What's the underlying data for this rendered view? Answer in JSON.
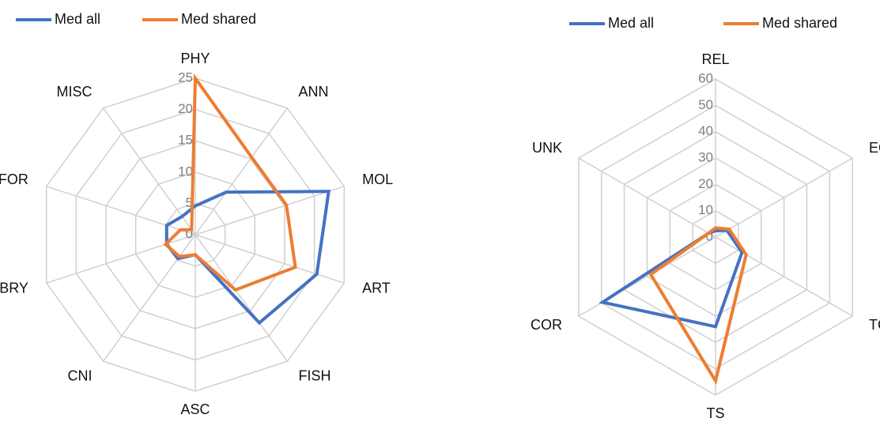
{
  "chart_data": [
    {
      "type": "radar",
      "categories": [
        "PHY",
        "ANN",
        "MOL",
        "ART",
        "FISH",
        "ASC",
        "CNI",
        "BRY",
        "FOR",
        "MISC"
      ],
      "series": [
        {
          "name": "Med all",
          "color": "#4472c4",
          "values": [
            4.6,
            8.4,
            22.4,
            20.4,
            17.4,
            3.2,
            4.7,
            4.8,
            4.8,
            3.6
          ]
        },
        {
          "name": "Med shared",
          "color": "#ed7d31",
          "values": [
            25,
            15.3,
            15.3,
            16.8,
            10.9,
            3.2,
            4.3,
            5,
            2.5,
            1
          ]
        }
      ],
      "ylim": [
        0,
        25
      ],
      "yticks": [
        0,
        5,
        10,
        15,
        20,
        25
      ],
      "grid": true
    },
    {
      "type": "radar",
      "categories": [
        "REL",
        "EC",
        "TC",
        "TS",
        "COR",
        "UNK"
      ],
      "series": [
        {
          "name": "Med all",
          "color": "#4472c4",
          "values": [
            2.4,
            5,
            11.6,
            34,
            49.5,
            3
          ]
        },
        {
          "name": "Med shared",
          "color": "#ed7d31",
          "values": [
            3.5,
            6,
            13.4,
            54.6,
            28.4,
            3
          ]
        }
      ],
      "ylim": [
        0,
        60
      ],
      "yticks": [
        0,
        10,
        20,
        30,
        40,
        50,
        60
      ],
      "grid": true
    }
  ]
}
